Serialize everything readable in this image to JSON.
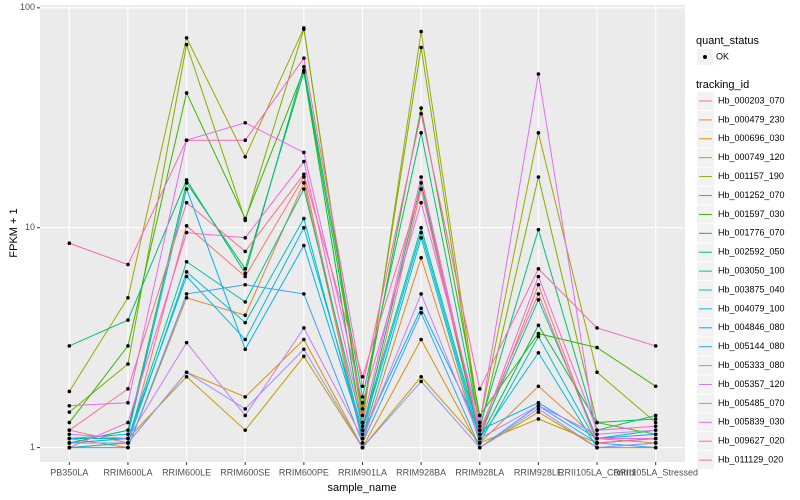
{
  "chart_data": {
    "type": "line",
    "x_label": "sample_name",
    "y_label": "FPKM + 1",
    "categories": [
      "PB350LA",
      "RRIM600LA",
      "RRIM600LE",
      "RRIM600SE",
      "RRIM600PE",
      "RRIM901LA",
      "RRIM928BA",
      "RRIM928LA",
      "RRIM928LE",
      "RRII105LA_Control",
      "RRII105LA_Stressed"
    ],
    "log_y": true,
    "ylim": [
      0.86,
      103
    ],
    "yticks": [
      1,
      10,
      100
    ],
    "grid": true,
    "point_color": "#000000",
    "shape_legend": {
      "title": "quant_status",
      "labels": [
        "OK"
      ]
    },
    "legend_title": "tracking_id",
    "legend_position": "right",
    "series": [
      {
        "name": "Hb_000203_070",
        "color": "#F8766D",
        "values": [
          1.2,
          1.05,
          10.2,
          6.0,
          17,
          1.1,
          15,
          1.1,
          5.5,
          1.05,
          1.1
        ]
      },
      {
        "name": "Hb_000479_230",
        "color": "#EA8331",
        "values": [
          1.1,
          1.0,
          4.8,
          4.0,
          16,
          1.05,
          7.3,
          1.05,
          1.9,
          1.1,
          1.05
        ]
      },
      {
        "name": "Hb_000696_030",
        "color": "#D89000",
        "values": [
          1.0,
          1.05,
          2.2,
          1.7,
          3.1,
          1.0,
          3.1,
          1.0,
          1.45,
          1.0,
          1.0
        ]
      },
      {
        "name": "Hb_000749_120",
        "color": "#C09B00",
        "values": [
          1.05,
          1.1,
          2.1,
          1.2,
          2.6,
          1.0,
          2.1,
          1.05,
          1.35,
          1.05,
          1.1
        ]
      },
      {
        "name": "Hb_001157_190",
        "color": "#A3A500",
        "values": [
          1.8,
          4.8,
          73,
          21,
          81,
          1.3,
          78,
          1.3,
          27,
          2.2,
          1.3
        ]
      },
      {
        "name": "Hb_001252_070",
        "color": "#7CAE00",
        "values": [
          1.45,
          2.4,
          68,
          10.8,
          80,
          1.4,
          66,
          1.2,
          17,
          1.3,
          1.15
        ]
      },
      {
        "name": "Hb_001597_030",
        "color": "#39B600",
        "values": [
          1.3,
          2.9,
          41,
          11,
          52,
          1.5,
          35,
          1.4,
          3.3,
          2.85,
          1.9
        ]
      },
      {
        "name": "Hb_001776_070",
        "color": "#00BB4E",
        "values": [
          1.05,
          1.2,
          16,
          6.5,
          51,
          1.2,
          16,
          1.1,
          3.6,
          1.3,
          1.35
        ]
      },
      {
        "name": "Hb_002592_050",
        "color": "#00BF7D",
        "values": [
          2.9,
          3.8,
          16.5,
          6.2,
          54,
          1.7,
          27,
          1.25,
          9.8,
          1.2,
          1.4
        ]
      },
      {
        "name": "Hb_003050_100",
        "color": "#00C1A3",
        "values": [
          1.1,
          1.1,
          7,
          4.6,
          15,
          1.25,
          10,
          1.15,
          4.7,
          1.1,
          1.2
        ]
      },
      {
        "name": "Hb_003875_040",
        "color": "#00BFC4",
        "values": [
          1.0,
          1.05,
          6.3,
          3.7,
          11,
          1.1,
          9,
          1.05,
          3.2,
          1.05,
          1.1
        ]
      },
      {
        "name": "Hb_004079_100",
        "color": "#00BAE0",
        "values": [
          1.05,
          1.1,
          6,
          3.1,
          10,
          1.2,
          9.5,
          1.1,
          2.7,
          1.0,
          1.05
        ]
      },
      {
        "name": "Hb_004846_080",
        "color": "#00B0F6",
        "values": [
          1.1,
          1.15,
          15,
          2.8,
          8.3,
          1.15,
          4.3,
          1.2,
          1.6,
          1.1,
          1.15
        ]
      },
      {
        "name": "Hb_005144_080",
        "color": "#35A2FF",
        "values": [
          1.0,
          1.0,
          5,
          5.5,
          5,
          1.05,
          4.1,
          1.0,
          1.55,
          1.05,
          1.0
        ]
      },
      {
        "name": "Hb_005333_080",
        "color": "#9590FF",
        "values": [
          1.05,
          1.05,
          2.2,
          1.5,
          2.8,
          1.0,
          2.0,
          1.0,
          1.5,
          1.0,
          1.05
        ]
      },
      {
        "name": "Hb_005357_120",
        "color": "#C77CFF",
        "values": [
          1.15,
          1.1,
          3,
          1.4,
          3.5,
          1.1,
          5,
          1.1,
          1.55,
          1.15,
          1.2
        ]
      },
      {
        "name": "Hb_005485_070",
        "color": "#E76BF3",
        "values": [
          1.55,
          1.6,
          25,
          30,
          22,
          1.6,
          13,
          1.3,
          50,
          1.1,
          1.1
        ]
      },
      {
        "name": "Hb_005839_030",
        "color": "#FA62DB",
        "values": [
          1.0,
          1.3,
          9.5,
          9,
          20,
          1.3,
          17,
          1.15,
          6.0,
          1.2,
          1.25
        ]
      },
      {
        "name": "Hb_009627_020",
        "color": "#FF62BC",
        "values": [
          8.5,
          6.8,
          25,
          25,
          59,
          1.9,
          33,
          1.85,
          6.5,
          3.5,
          2.9
        ]
      },
      {
        "name": "Hb_011129_020",
        "color": "#FF6C91",
        "values": [
          1.2,
          1.85,
          13,
          7.8,
          17.5,
          2.1,
          15,
          1.2,
          5.0,
          1.05,
          1.1
        ]
      }
    ]
  }
}
